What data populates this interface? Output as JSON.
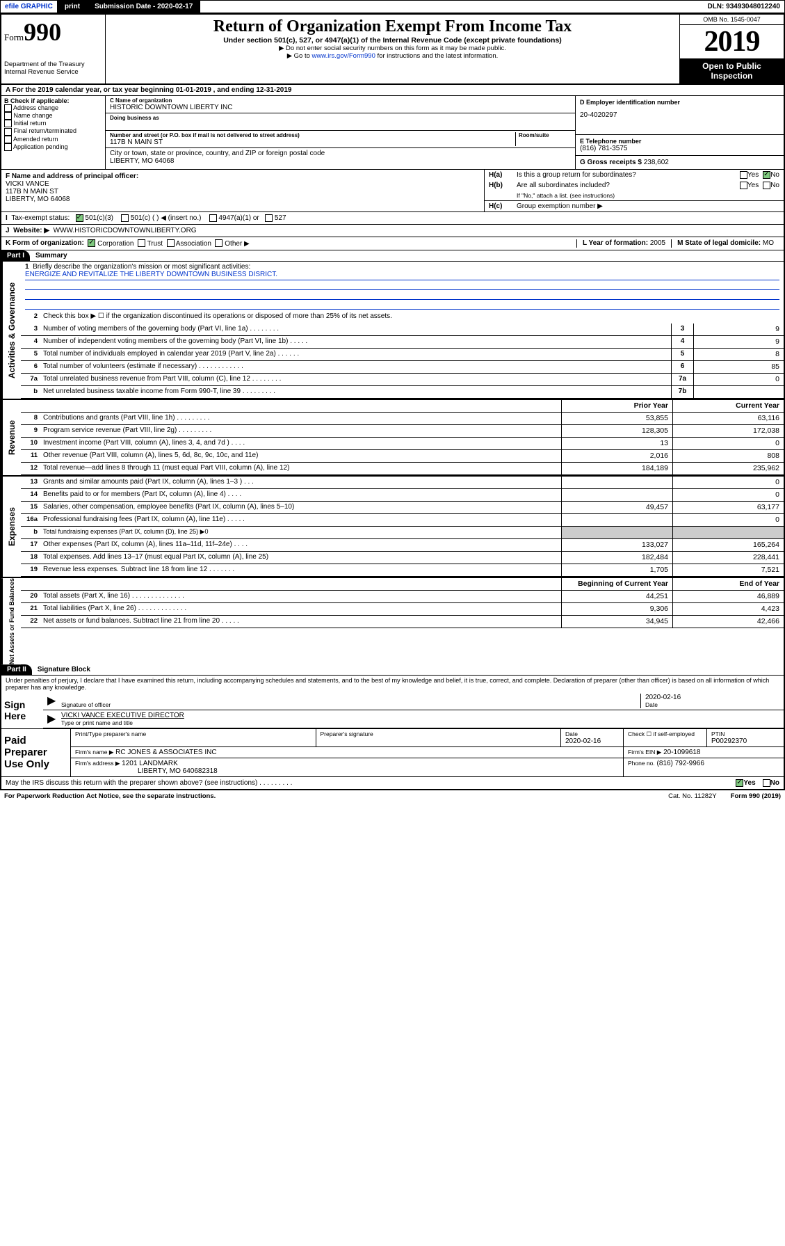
{
  "topbar": {
    "efile": "efile GRAPHIC",
    "print": "print",
    "subdate_label": "Submission Date - 2020-02-17",
    "dln": "DLN: 93493048012240"
  },
  "header": {
    "form_word": "Form",
    "form_num": "990",
    "dept": "Department of the Treasury\nInternal Revenue Service",
    "title": "Return of Organization Exempt From Income Tax",
    "subtitle": "Under section 501(c), 527, or 4947(a)(1) of the Internal Revenue Code (except private foundations)",
    "note1": "▶ Do not enter social security numbers on this form as it may be made public.",
    "note2_pre": "▶ Go to ",
    "note2_link": "www.irs.gov/Form990",
    "note2_post": " for instructions and the latest information.",
    "omb": "OMB No. 1545-0047",
    "year": "2019",
    "open": "Open to Public Inspection"
  },
  "period": "A For the 2019 calendar year, or tax year beginning 01-01-2019    , and ending 12-31-2019",
  "boxB": {
    "label": "B Check if applicable:",
    "items": [
      "Address change",
      "Name change",
      "Initial return",
      "Final return/terminated",
      "Amended return",
      "Application pending"
    ]
  },
  "boxC": {
    "name_lbl": "C Name of organization",
    "name": "HISTORIC DOWNTOWN LIBERTY INC",
    "dba_lbl": "Doing business as",
    "street_lbl": "Number and street (or P.O. box if mail is not delivered to street address)",
    "room_lbl": "Room/suite",
    "street": "117B N MAIN ST",
    "city_lbl": "City or town, state or province, country, and ZIP or foreign postal code",
    "city": "LIBERTY, MO  64068"
  },
  "boxD": {
    "lbl": "D Employer identification number",
    "val": "20-4020297"
  },
  "boxE": {
    "lbl": "E Telephone number",
    "val": "(816) 781-3575"
  },
  "boxG": {
    "lbl": "G Gross receipts $",
    "val": "238,602"
  },
  "boxF": {
    "lbl": "F Name and address of principal officer:",
    "name": "VICKI VANCE",
    "addr1": "117B N MAIN ST",
    "addr2": "LIBERTY, MO  64068"
  },
  "boxH": {
    "a": "Is this a group return for subordinates?",
    "b": "Are all subordinates included?",
    "b_note": "If \"No,\" attach a list. (see instructions)",
    "c": "Group exemption number ▶",
    "yes": "Yes",
    "no": "No"
  },
  "taxstatus": {
    "lbl": "Tax-exempt status:",
    "opts": [
      "501(c)(3)",
      "501(c) (  ) ◀ (insert no.)",
      "4947(a)(1) or",
      "527"
    ]
  },
  "website": {
    "lbl": "Website: ▶",
    "val": "WWW.HISTORICDOWNTOWNLIBERTY.ORG"
  },
  "boxK": {
    "lbl": "K Form of organization:",
    "opts": [
      "Corporation",
      "Trust",
      "Association",
      "Other ▶"
    ]
  },
  "boxL": {
    "lbl": "L Year of formation:",
    "val": "2005"
  },
  "boxM": {
    "lbl": "M State of legal domicile:",
    "val": "MO"
  },
  "part1": {
    "bar": "Part I",
    "title": "Summary"
  },
  "summary": {
    "q1": "Briefly describe the organization's mission or most significant activities:",
    "mission": "ENERGIZE AND REVITALIZE THE LIBERTY DOWNTOWN BUSINESS DISRICT.",
    "q2": "Check this box ▶ ☐  if the organization discontinued its operations or disposed of more than 25% of its net assets.",
    "lines": [
      {
        "n": "3",
        "d": "Number of voting members of the governing body (Part VI, line 1a)  .   .   .   .   .   .   .   .",
        "box": "3",
        "v": "9"
      },
      {
        "n": "4",
        "d": "Number of independent voting members of the governing body (Part VI, line 1b)   .   .   .   .   .",
        "box": "4",
        "v": "9"
      },
      {
        "n": "5",
        "d": "Total number of individuals employed in calendar year 2019 (Part V, line 2a)   .   .   .   .   .   .",
        "box": "5",
        "v": "8"
      },
      {
        "n": "6",
        "d": "Total number of volunteers (estimate if necessary)   .   .   .   .   .   .   .   .   .   .   .   .",
        "box": "6",
        "v": "85"
      },
      {
        "n": "7a",
        "d": "Total unrelated business revenue from Part VIII, column (C), line 12   .   .   .   .   .   .   .   .",
        "box": "7a",
        "v": "0"
      },
      {
        "n": "  b",
        "d": "Net unrelated business taxable income from Form 990-T, line 39   .   .   .   .   .   .   .   .   .",
        "box": "7b",
        "v": ""
      }
    ],
    "hdr_prior": "Prior Year",
    "hdr_curr": "Current Year",
    "rev": [
      {
        "n": "8",
        "d": "Contributions and grants (Part VIII, line 1h)   .   .   .   .   .   .   .   .   .",
        "p": "53,855",
        "c": "63,116"
      },
      {
        "n": "9",
        "d": "Program service revenue (Part VIII, line 2g)   .   .   .   .   .   .   .   .   .",
        "p": "128,305",
        "c": "172,038"
      },
      {
        "n": "10",
        "d": "Investment income (Part VIII, column (A), lines 3, 4, and 7d )   .   .   .   .",
        "p": "13",
        "c": "0"
      },
      {
        "n": "11",
        "d": "Other revenue (Part VIII, column (A), lines 5, 6d, 8c, 9c, 10c, and 11e)",
        "p": "2,016",
        "c": "808"
      },
      {
        "n": "12",
        "d": "Total revenue—add lines 8 through 11 (must equal Part VIII, column (A), line 12)",
        "p": "184,189",
        "c": "235,962"
      }
    ],
    "exp": [
      {
        "n": "13",
        "d": "Grants and similar amounts paid (Part IX, column (A), lines 1–3 )   .   .   .",
        "p": "",
        "c": "0"
      },
      {
        "n": "14",
        "d": "Benefits paid to or for members (Part IX, column (A), line 4)   .   .   .   .",
        "p": "",
        "c": "0"
      },
      {
        "n": "15",
        "d": "Salaries, other compensation, employee benefits (Part IX, column (A), lines 5–10)",
        "p": "49,457",
        "c": "63,177"
      },
      {
        "n": "16a",
        "d": "Professional fundraising fees (Part IX, column (A), line 11e)   .   .   .   .   .",
        "p": "",
        "c": "0"
      },
      {
        "n": "  b",
        "d": "Total fundraising expenses (Part IX, column (D), line 25) ▶0",
        "p": null,
        "c": null
      },
      {
        "n": "17",
        "d": "Other expenses (Part IX, column (A), lines 11a–11d, 11f–24e)   .   .   .   .",
        "p": "133,027",
        "c": "165,264"
      },
      {
        "n": "18",
        "d": "Total expenses. Add lines 13–17 (must equal Part IX, column (A), line 25)",
        "p": "182,484",
        "c": "228,441"
      },
      {
        "n": "19",
        "d": "Revenue less expenses. Subtract line 18 from line 12   .   .   .   .   .   .   .",
        "p": "1,705",
        "c": "7,521"
      }
    ],
    "hdr_beg": "Beginning of Current Year",
    "hdr_end": "End of Year",
    "net": [
      {
        "n": "20",
        "d": "Total assets (Part X, line 16)   .   .   .   .   .   .   .   .   .   .   .   .   .   .",
        "p": "44,251",
        "c": "46,889"
      },
      {
        "n": "21",
        "d": "Total liabilities (Part X, line 26)   .   .   .   .   .   .   .   .   .   .   .   .   .",
        "p": "9,306",
        "c": "4,423"
      },
      {
        "n": "22",
        "d": "Net assets or fund balances. Subtract line 21 from line 20   .   .   .   .   .",
        "p": "34,945",
        "c": "42,466"
      }
    ]
  },
  "sidelabels": {
    "gov": "Activities & Governance",
    "rev": "Revenue",
    "exp": "Expenses",
    "net": "Net Assets or Fund Balances"
  },
  "part2": {
    "bar": "Part II",
    "title": "Signature Block"
  },
  "penalty": "Under penalties of perjury, I declare that I have examined this return, including accompanying schedules and statements, and to the best of my knowledge and belief, it is true, correct, and complete. Declaration of preparer (other than officer) is based on all information of which preparer has any knowledge.",
  "sign": {
    "here": "Sign Here",
    "sigoff": "Signature of officer",
    "date": "2020-02-16",
    "date_lbl": "Date",
    "name": "VICKI VANCE EXECUTIVE DIRECTOR",
    "name_lbl": "Type or print name and title"
  },
  "paid": {
    "lbl": "Paid Preparer Use Only",
    "h": [
      "Print/Type preparer's name",
      "Preparer's signature",
      "Date",
      "",
      "PTIN"
    ],
    "date": "2020-02-16",
    "check": "Check ☐ if self-employed",
    "ptin": "P00292370",
    "firm_lbl": "Firm's name   ▶",
    "firm": "RC JONES & ASSOCIATES INC",
    "ein_lbl": "Firm's EIN ▶",
    "ein": "20-1099618",
    "addr_lbl": "Firm's address ▶",
    "addr": "1201 LANDMARK",
    "addr2": "LIBERTY, MO  640682318",
    "phone_lbl": "Phone no.",
    "phone": "(816) 792-9966"
  },
  "discuss": "May the IRS discuss this return with the preparer shown above? (see instructions)   .   .   .   .   .   .   .   .   .",
  "footer": {
    "l": "For Paperwork Reduction Act Notice, see the separate instructions.",
    "c": "Cat. No. 11282Y",
    "r": "Form 990 (2019)"
  },
  "colors": {
    "link": "#0033cc",
    "check": "#7fc97f"
  }
}
